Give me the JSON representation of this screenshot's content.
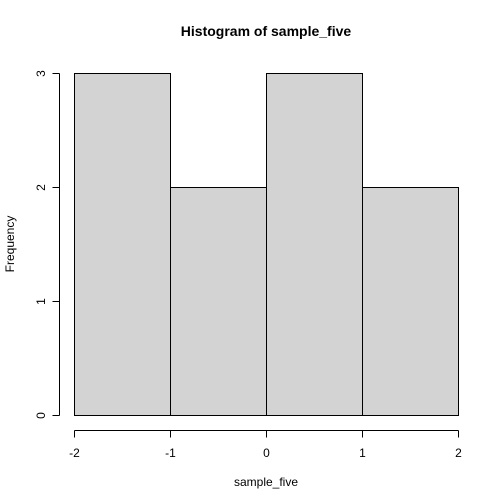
{
  "chart_data": {
    "type": "bar",
    "title": "Histogram of sample_five",
    "xlabel": "sample_five",
    "ylabel": "Frequency",
    "bins": [
      {
        "from": -2,
        "to": -1,
        "count": 3
      },
      {
        "from": -1,
        "to": 0,
        "count": 2
      },
      {
        "from": 0,
        "to": 1,
        "count": 3
      },
      {
        "from": 1,
        "to": 2,
        "count": 2
      }
    ],
    "xticks": [
      -2,
      -1,
      0,
      1,
      2
    ],
    "yticks": [
      0,
      1,
      2,
      3
    ],
    "xlim": [
      -2,
      2
    ],
    "ylim": [
      0,
      3
    ],
    "grid": false,
    "bar_color": "#d3d3d3",
    "edge_color": "#000000"
  }
}
